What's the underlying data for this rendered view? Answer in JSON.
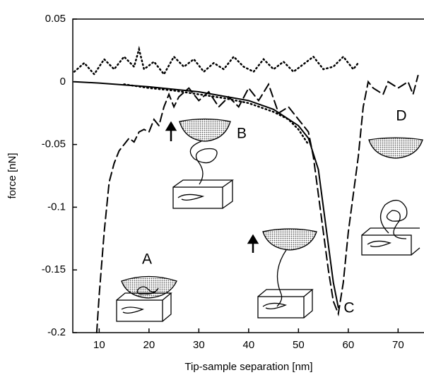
{
  "chart_data": {
    "type": "line",
    "x_label": "Tip-sample separation [nm]",
    "y_label": "force [nN]",
    "annotations": [
      "A",
      "B",
      "C",
      "D"
    ],
    "xlim": [
      4.7,
      75.2
    ],
    "xticks": [
      10,
      20,
      30,
      40,
      50,
      60,
      70
    ],
    "ylim": [
      -0.2,
      0.05
    ],
    "yticks": [
      0.05,
      0,
      -0.05,
      -0.1,
      -0.15,
      -0.2
    ],
    "series": [
      {
        "color": "#000000",
        "style": "solid",
        "x": [
          5,
          10,
          20,
          30,
          40,
          45,
          50,
          52,
          54,
          55,
          56,
          57,
          58
        ],
        "values": [
          0,
          -0.001,
          -0.004,
          -0.008,
          -0.015,
          -0.022,
          -0.035,
          -0.045,
          -0.07,
          -0.1,
          -0.13,
          -0.16,
          -0.18
        ]
      },
      {
        "color": "#000000",
        "style": "dotted",
        "x": [
          15,
          20,
          25,
          30,
          35,
          40,
          45,
          48,
          50,
          52
        ],
        "values": [
          -0.002,
          -0.005,
          -0.007,
          -0.01,
          -0.013,
          -0.017,
          -0.024,
          -0.03,
          -0.038,
          -0.05
        ]
      },
      {
        "color": "#000000",
        "style": "dashed",
        "x": [
          9.5,
          10,
          11,
          12,
          13,
          14,
          15,
          16,
          17,
          18,
          19,
          20,
          21,
          22,
          23,
          24,
          25,
          26,
          28,
          30,
          32,
          34,
          36,
          38,
          40,
          42,
          44,
          46,
          48,
          50,
          52,
          53,
          54,
          55,
          56,
          57,
          58,
          59,
          60,
          62,
          63,
          64,
          65,
          67,
          68,
          70,
          72,
          73,
          74
        ],
        "values": [
          -0.2,
          -0.17,
          -0.12,
          -0.08,
          -0.065,
          -0.055,
          -0.05,
          -0.045,
          -0.048,
          -0.04,
          -0.038,
          -0.04,
          -0.03,
          -0.035,
          -0.02,
          -0.01,
          -0.02,
          -0.012,
          -0.005,
          -0.015,
          -0.008,
          -0.02,
          -0.012,
          -0.02,
          -0.005,
          -0.015,
          -0.002,
          -0.025,
          -0.02,
          -0.03,
          -0.04,
          -0.06,
          -0.09,
          -0.12,
          -0.15,
          -0.175,
          -0.185,
          -0.16,
          -0.12,
          -0.06,
          -0.02,
          0.0,
          -0.005,
          -0.01,
          0.0,
          -0.005,
          0.0,
          -0.01,
          0.005
        ]
      },
      {
        "color": "#000000",
        "style": "dotted",
        "x": [
          5,
          7,
          9,
          11,
          13,
          15,
          17,
          18,
          19,
          21,
          23,
          25,
          27,
          29,
          31,
          33,
          35,
          37,
          39,
          41,
          43,
          45,
          47,
          49,
          51,
          53,
          55,
          57,
          59,
          61,
          62
        ],
        "values": [
          0.008,
          0.015,
          0.006,
          0.018,
          0.01,
          0.02,
          0.012,
          0.026,
          0.01,
          0.016,
          0.006,
          0.02,
          0.012,
          0.018,
          0.008,
          0.015,
          0.01,
          0.02,
          0.012,
          0.008,
          0.018,
          0.01,
          0.016,
          0.008,
          0.014,
          0.02,
          0.01,
          0.012,
          0.02,
          0.01,
          0.015
        ]
      }
    ]
  }
}
